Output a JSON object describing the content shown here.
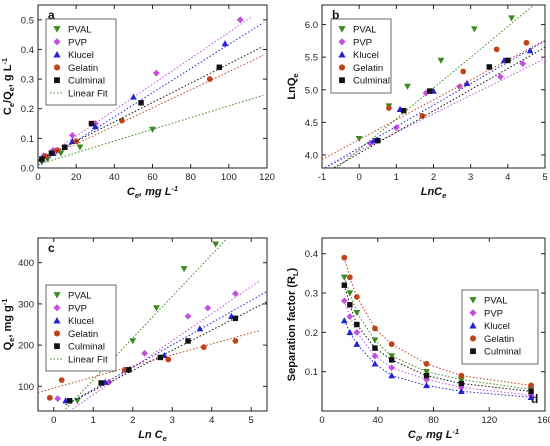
{
  "colors": {
    "PVAL": "#3a8a1e",
    "PVP": "#c34fe0",
    "Klucel": "#2424d6",
    "Gelatin": "#c0441b",
    "Culminal": "#111111"
  },
  "chart_data": [
    {
      "type": "scatter",
      "panel_label": "a",
      "xlabel": "C_e, mg L^-1",
      "ylabel": "C_e/Q_e, g L^-1",
      "xlim": [
        0,
        120
      ],
      "ylim": [
        0,
        0.55
      ],
      "xticks": [
        0,
        20,
        40,
        60,
        80,
        100,
        120
      ],
      "yticks": [
        0.0,
        0.1,
        0.2,
        0.3,
        0.4,
        0.5
      ],
      "grid": false,
      "legend": {
        "placement": "top-left",
        "entries": [
          "PVAL",
          "PVP",
          "Klucel",
          "Gelatin",
          "Culminal",
          "Linear Fit"
        ]
      },
      "series": [
        {
          "name": "PVAL",
          "marker": "triangle-down",
          "points": [
            [
              2,
              0.02
            ],
            [
              5,
              0.03
            ],
            [
              12,
              0.05
            ],
            [
              22,
              0.07
            ],
            [
              60,
              0.13
            ]
          ],
          "fit": [
            [
              0,
              0.012
            ],
            [
              118,
              0.245
            ]
          ]
        },
        {
          "name": "PVP",
          "marker": "diamond",
          "points": [
            [
              3,
              0.04
            ],
            [
              8,
              0.06
            ],
            [
              18,
              0.11
            ],
            [
              30,
              0.15
            ],
            [
              62,
              0.32
            ],
            [
              106,
              0.5
            ]
          ],
          "fit": [
            [
              0,
              0.02
            ],
            [
              112,
              0.51
            ]
          ]
        },
        {
          "name": "Klucel",
          "marker": "triangle-up",
          "points": [
            [
              3,
              0.04
            ],
            [
              8,
              0.05
            ],
            [
              18,
              0.09
            ],
            [
              30,
              0.14
            ],
            [
              50,
              0.24
            ],
            [
              98,
              0.42
            ]
          ],
          "fit": [
            [
              0,
              0.01
            ],
            [
              118,
              0.49
            ]
          ]
        },
        {
          "name": "Gelatin",
          "marker": "circle",
          "points": [
            [
              4,
              0.04
            ],
            [
              10,
              0.06
            ],
            [
              20,
              0.09
            ],
            [
              44,
              0.16
            ],
            [
              90,
              0.3
            ]
          ],
          "fit": [
            [
              0,
              0.02
            ],
            [
              118,
              0.38
            ]
          ]
        },
        {
          "name": "Culminal",
          "marker": "square",
          "points": [
            [
              2,
              0.03
            ],
            [
              7,
              0.05
            ],
            [
              14,
              0.07
            ],
            [
              28,
              0.15
            ],
            [
              54,
              0.22
            ],
            [
              95,
              0.34
            ]
          ],
          "fit": [
            [
              0,
              0.025
            ],
            [
              118,
              0.41
            ]
          ]
        }
      ]
    },
    {
      "type": "scatter",
      "panel_label": "b",
      "xlabel": "LnC_e",
      "ylabel": "LnQ_e",
      "xlim": [
        -1,
        5
      ],
      "ylim": [
        3.8,
        6.3
      ],
      "xticks": [
        -1,
        0,
        1,
        2,
        3,
        4,
        5
      ],
      "yticks": [
        4.0,
        4.5,
        5.0,
        5.5,
        6.0
      ],
      "grid": false,
      "legend": {
        "placement": "top-left",
        "entries": [
          "PVAL",
          "PVP",
          "Klucel",
          "Gelatin",
          "Culminal"
        ]
      },
      "series": [
        {
          "name": "PVAL",
          "marker": "triangle-down",
          "points": [
            [
              0,
              4.25
            ],
            [
              0.8,
              4.75
            ],
            [
              1.3,
              5.05
            ],
            [
              2.2,
              5.45
            ],
            [
              3.1,
              5.93
            ],
            [
              4.1,
              6.1
            ]
          ],
          "fit": [
            [
              -0.6,
              3.8
            ],
            [
              4.7,
              6.3
            ]
          ]
        },
        {
          "name": "PVP",
          "marker": "diamond",
          "points": [
            [
              0.3,
              4.18
            ],
            [
              1.0,
              4.42
            ],
            [
              1.8,
              4.95
            ],
            [
              2.7,
              5.05
            ],
            [
              3.8,
              5.2
            ],
            [
              4.4,
              5.4
            ]
          ],
          "fit": [
            [
              -1,
              3.78
            ],
            [
              5,
              5.48
            ]
          ]
        },
        {
          "name": "Klucel",
          "marker": "triangle-up",
          "points": [
            [
              0.4,
              4.22
            ],
            [
              1.1,
              4.7
            ],
            [
              2.0,
              4.98
            ],
            [
              2.9,
              5.1
            ],
            [
              3.9,
              5.45
            ],
            [
              4.6,
              5.6
            ]
          ],
          "fit": [
            [
              -1,
              3.78
            ],
            [
              5,
              5.75
            ]
          ]
        },
        {
          "name": "Gelatin",
          "marker": "circle",
          "points": [
            [
              0.8,
              4.72
            ],
            [
              1.7,
              4.6
            ],
            [
              2.8,
              5.28
            ],
            [
              3.7,
              5.62
            ],
            [
              4.5,
              5.72
            ]
          ],
          "fit": [
            [
              -1,
              3.93
            ],
            [
              5,
              5.76
            ]
          ]
        },
        {
          "name": "Culminal",
          "marker": "square",
          "points": [
            [
              0.5,
              4.22
            ],
            [
              1.2,
              4.68
            ],
            [
              1.9,
              4.98
            ],
            [
              3.5,
              5.35
            ],
            [
              4.0,
              5.45
            ]
          ],
          "fit": [
            [
              -1,
              3.7
            ],
            [
              5,
              5.65
            ]
          ]
        }
      ]
    },
    {
      "type": "scatter",
      "panel_label": "c",
      "xlabel": "Ln C_e",
      "ylabel": "Q_e, mg g^-1",
      "xlim": [
        -0.4,
        5.4
      ],
      "ylim": [
        40,
        460
      ],
      "xticks": [
        0,
        1,
        2,
        3,
        4,
        5
      ],
      "yticks": [
        100,
        200,
        300,
        400
      ],
      "grid": false,
      "legend": {
        "placement": "top-left",
        "entries": [
          "PVAL",
          "PVP",
          "Klucel",
          "Gelatin",
          "Culminal",
          "Linear Fit"
        ]
      },
      "series": [
        {
          "name": "PVAL",
          "marker": "triangle-down",
          "points": [
            [
              0.6,
              65
            ],
            [
              1.2,
              155
            ],
            [
              2.0,
              210
            ],
            [
              2.6,
              290
            ],
            [
              3.3,
              385
            ],
            [
              4.1,
              445
            ]
          ],
          "fit": [
            [
              0.3,
              45
            ],
            [
              4.4,
              460
            ]
          ]
        },
        {
          "name": "PVP",
          "marker": "diamond",
          "points": [
            [
              0.1,
              70
            ],
            [
              1.4,
              110
            ],
            [
              2.3,
              180
            ],
            [
              3.4,
              270
            ],
            [
              3.9,
              290
            ],
            [
              4.6,
              325
            ]
          ],
          "fit": [
            [
              0.4,
              40
            ],
            [
              5.2,
              355
            ]
          ]
        },
        {
          "name": "Klucel",
          "marker": "triangle-up",
          "points": [
            [
              0.3,
              65
            ],
            [
              1.3,
              110
            ],
            [
              1.8,
              140
            ],
            [
              2.8,
              175
            ],
            [
              3.7,
              240
            ],
            [
              4.5,
              270
            ]
          ],
          "fit": [
            [
              0.4,
              60
            ],
            [
              5.4,
              330
            ]
          ]
        },
        {
          "name": "Gelatin",
          "marker": "circle",
          "points": [
            [
              -0.1,
              72
            ],
            [
              0.2,
              115
            ],
            [
              1.8,
              140
            ],
            [
              2.9,
              165
            ],
            [
              3.8,
              195
            ],
            [
              4.6,
              210
            ]
          ],
          "fit": [
            [
              -0.4,
              85
            ],
            [
              5.2,
              235
            ]
          ]
        },
        {
          "name": "Culminal",
          "marker": "square",
          "points": [
            [
              0.4,
              65
            ],
            [
              1.2,
              108
            ],
            [
              1.9,
              140
            ],
            [
              2.7,
              170
            ],
            [
              3.4,
              210
            ],
            [
              4.6,
              265
            ]
          ],
          "fit": [
            [
              0.3,
              55
            ],
            [
              5.4,
              305
            ]
          ]
        }
      ]
    },
    {
      "type": "line",
      "panel_label": "d",
      "xlabel": "C_0, mg L^-1",
      "ylabel": "Separation factor (R_L)",
      "xlim": [
        0,
        160
      ],
      "ylim": [
        0.0,
        0.44
      ],
      "xticks": [
        0,
        40,
        80,
        120,
        160
      ],
      "yticks": [
        0.1,
        0.2,
        0.3,
        0.4
      ],
      "grid": false,
      "legend": {
        "placement": "right",
        "entries": [
          "PVAL",
          "PVP",
          "Klucel",
          "Gelatin",
          "Culminal"
        ]
      },
      "x": [
        16,
        20,
        25,
        38,
        50,
        75,
        100,
        150
      ],
      "series": [
        {
          "name": "PVAL",
          "marker": "triangle-down",
          "values": [
            0.34,
            0.3,
            0.25,
            0.18,
            0.14,
            0.1,
            0.08,
            0.055
          ]
        },
        {
          "name": "PVP",
          "marker": "diamond",
          "values": [
            0.28,
            0.24,
            0.2,
            0.14,
            0.11,
            0.08,
            0.06,
            0.04
          ]
        },
        {
          "name": "Klucel",
          "marker": "triangle-up",
          "values": [
            0.23,
            0.2,
            0.17,
            0.12,
            0.09,
            0.065,
            0.05,
            0.035
          ]
        },
        {
          "name": "Gelatin",
          "marker": "circle",
          "values": [
            0.39,
            0.34,
            0.29,
            0.21,
            0.17,
            0.12,
            0.09,
            0.065
          ]
        },
        {
          "name": "Culminal",
          "marker": "square",
          "values": [
            0.32,
            0.27,
            0.22,
            0.16,
            0.13,
            0.09,
            0.07,
            0.05
          ]
        }
      ]
    }
  ]
}
